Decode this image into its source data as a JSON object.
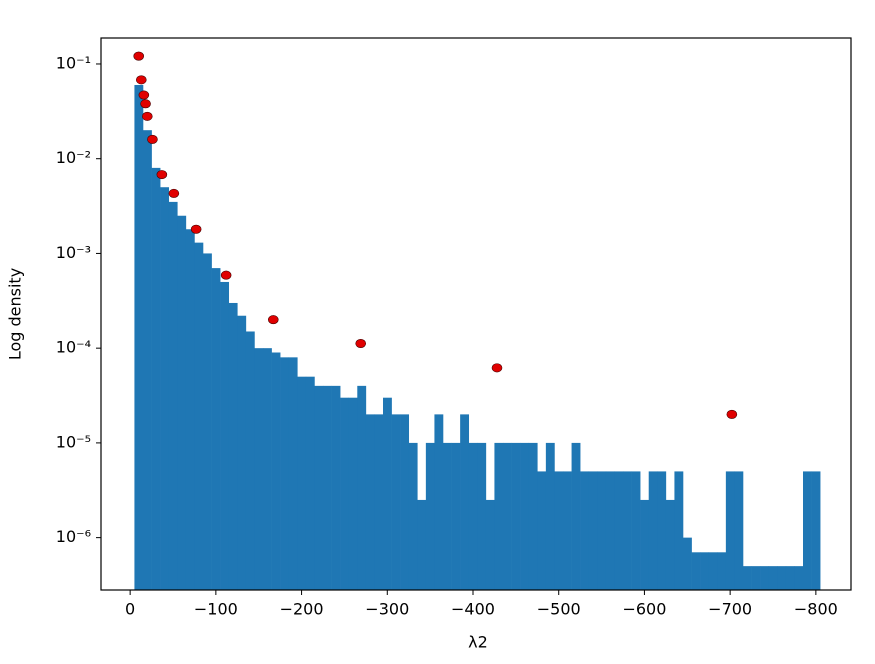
{
  "chart_data": {
    "type": "histogram",
    "xlabel": "λ2",
    "ylabel": "Log density",
    "yscale": "log",
    "color": "#1f77b4",
    "bins": [
      -5,
      -15,
      -25,
      -35,
      -45,
      -55,
      -65,
      -75,
      -85,
      -95,
      -105,
      -115,
      -125,
      -135,
      -145,
      -155,
      -165,
      -175,
      -185,
      -195,
      -205,
      -215,
      -225,
      -235,
      -245,
      -255,
      -265,
      -275,
      -285,
      -295,
      -305,
      -315,
      -325,
      -335,
      -345,
      -355,
      -365,
      -375,
      -385,
      -395,
      -405,
      -415,
      -425,
      -435,
      -445,
      -455,
      -465,
      -475,
      -485,
      -495,
      -505,
      -515,
      -525,
      -535,
      -545,
      -555,
      -565,
      -575,
      -585,
      -595,
      -605,
      -615,
      -625,
      -635,
      -645,
      -655,
      -665,
      -675,
      -685,
      -695,
      -705,
      -715,
      -725,
      -735,
      -745,
      -755,
      -765,
      -775,
      -785,
      -795,
      -805
    ],
    "values": [
      0.06,
      0.02,
      0.008,
      0.005,
      0.0035,
      0.0025,
      0.0018,
      0.0013,
      0.001,
      0.0007,
      0.0005,
      0.0003,
      0.00022,
      0.00015,
      0.0001,
      0.0001,
      9e-05,
      8e-05,
      8e-05,
      5e-05,
      5e-05,
      4e-05,
      4e-05,
      4e-05,
      3e-05,
      3e-05,
      4e-05,
      2e-05,
      2e-05,
      3e-05,
      2e-05,
      2e-05,
      1e-05,
      2.5e-06,
      1e-05,
      2e-05,
      1e-05,
      1e-05,
      2e-05,
      1e-05,
      1e-05,
      2.5e-06,
      1e-05,
      1e-05,
      1e-05,
      1e-05,
      1e-05,
      5e-06,
      1e-05,
      5e-06,
      5e-06,
      1e-05,
      5e-06,
      5e-06,
      5e-06,
      5e-06,
      5e-06,
      5e-06,
      5e-06,
      2.5e-06,
      5e-06,
      5e-06,
      2.5e-06,
      5e-06,
      1e-06,
      7e-07,
      7e-07,
      7e-07,
      7e-07,
      5e-06,
      5e-06,
      5e-07,
      5e-07,
      5e-07,
      5e-07,
      5e-07,
      5e-07,
      5e-07,
      5e-06,
      5e-06
    ],
    "points": {
      "color": "#e00000",
      "x": [
        -10,
        -13,
        -16,
        -18,
        -20,
        -26,
        -37,
        -51,
        -77,
        -112,
        -167,
        -269,
        -428,
        -702
      ],
      "y": [
        0.121,
        0.068,
        0.047,
        0.038,
        0.028,
        0.016,
        0.0068,
        0.0043,
        0.0018,
        0.00059,
        0.0002,
        0.000112,
        6.2e-05,
        2e-05
      ]
    },
    "xlim": [
      34,
      -841
    ],
    "xticks": [
      0,
      {
        "value": -100,
        "label": "−100"
      },
      {
        "value": -200,
        "label": "−200"
      },
      {
        "value": -300,
        "label": "−300"
      },
      {
        "value": -400,
        "label": "−400"
      },
      {
        "value": -500,
        "label": "−500"
      },
      {
        "value": -600,
        "label": "−600"
      },
      {
        "value": -700,
        "label": "−700"
      },
      {
        "value": -800,
        "label": "−800"
      }
    ],
    "ylim": [
      2.8e-07,
      0.188
    ],
    "yticks": [
      {
        "value": 1e-06,
        "label": "10⁻⁶"
      },
      {
        "value": 1e-05,
        "label": "10⁻⁵"
      },
      {
        "value": 0.0001,
        "label": "10⁻⁴"
      },
      {
        "value": 0.001,
        "label": "10⁻³"
      },
      {
        "value": 0.01,
        "label": "10⁻²"
      },
      {
        "value": 0.1,
        "label": "10⁻¹"
      }
    ]
  }
}
